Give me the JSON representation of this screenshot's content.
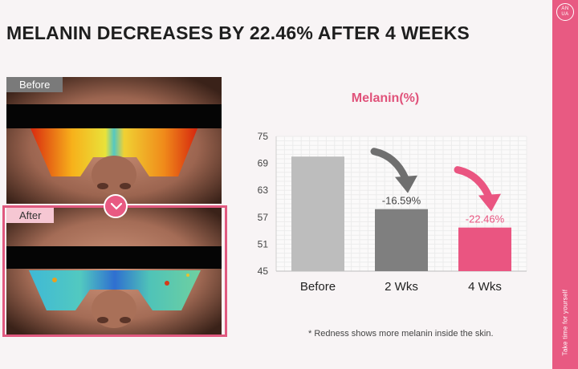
{
  "headline": "MELANIN DECREASES BY 22.46% AFTER 4 WEEKS",
  "brand_logo": "ANUA",
  "sidebar_tagline": "Take time for yourself",
  "photos": {
    "before_label": "Before",
    "after_label": "After"
  },
  "footnote": "* Redness shows more melanin inside the skin.",
  "colors": {
    "accent": "#e85a82",
    "before_bar": "#bdbdbd",
    "wk2_bar": "#7f7f7f",
    "wk4_bar": "#ea5581"
  },
  "chart_data": {
    "type": "bar",
    "title": "Melanin(%)",
    "categories": [
      "Before",
      "2 Wks",
      "4 Wks"
    ],
    "values": [
      70.5,
      58.8,
      54.7
    ],
    "data_labels": [
      "",
      "-16.59%",
      "-22.46%"
    ],
    "yticks": [
      75,
      69,
      63,
      57,
      51,
      45
    ],
    "ylim": [
      45,
      75
    ],
    "xlabel": "",
    "ylabel": "",
    "grid": true,
    "legend": "none"
  }
}
